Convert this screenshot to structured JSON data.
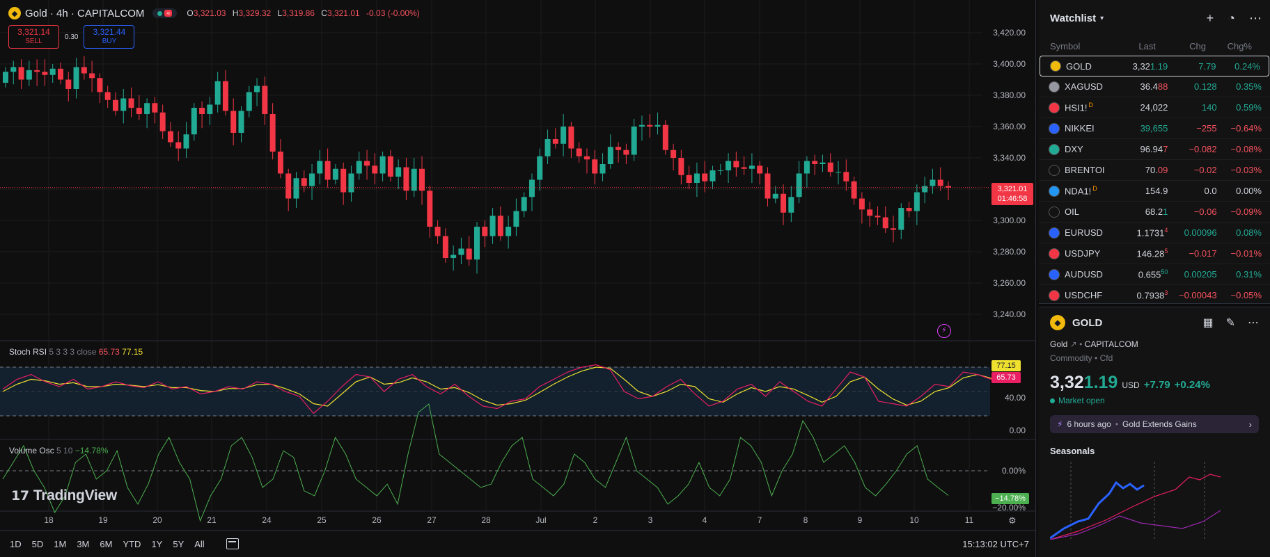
{
  "header": {
    "symbol_title": "Gold · 4h · CAPITALCOM",
    "open_label": "O",
    "open": "3,321.03",
    "high_label": "H",
    "high": "3,329.32",
    "low_label": "L",
    "low": "3,319.86",
    "close_label": "C",
    "close": "3,321.01",
    "change": "-0.03 (-0.00%)"
  },
  "trade": {
    "sell_price": "3,321.14",
    "sell_label": "SELL",
    "spread": "0.30",
    "buy_price": "3,321.44",
    "buy_label": "BUY"
  },
  "price_axis": [
    "3,420.00",
    "3,400.00",
    "3,380.00",
    "3,360.00",
    "3,340.00",
    "3,320.00",
    "3,300.00",
    "3,280.00",
    "3,260.00",
    "3,240.00"
  ],
  "last_price_tag": {
    "price": "3,321.01",
    "countdown": "01:46:58"
  },
  "stoch_rsi": {
    "name": "Stoch RSI",
    "params": "5 3 3 3 close",
    "k": "65.73",
    "d": "77.15",
    "axis": [
      "40.00",
      "0.00"
    ]
  },
  "volume_osc": {
    "name": "Volume Osc",
    "params": "5 10",
    "value": "−14.78%",
    "axis": [
      "0.00%",
      "−20.00%"
    ],
    "tag": "−14.78%"
  },
  "x_axis": [
    "18",
    "19",
    "20",
    "21",
    "24",
    "25",
    "26",
    "27",
    "28",
    "Jul",
    "2",
    "3",
    "4",
    "7",
    "8",
    "9",
    "10",
    "11"
  ],
  "logo_text": "TradingView",
  "ranges": [
    "1D",
    "5D",
    "1M",
    "3M",
    "6M",
    "YTD",
    "1Y",
    "5Y",
    "All"
  ],
  "clock": "15:13:02 UTC+7",
  "colors": {
    "up": "#22ab94",
    "down": "#f23645",
    "accent": "#2962ff"
  },
  "watchlist": {
    "title": "Watchlist",
    "columns": [
      "Symbol",
      "Last",
      "Chg",
      "Chg%"
    ],
    "rows": [
      {
        "symbol": "GOLD",
        "last_a": "3,32",
        "last_b": "1.19",
        "chg": "7.79",
        "pct": "0.24%",
        "dir": "up",
        "icon_bg": "#f0b90b",
        "icon": "gold-icon",
        "mark": "",
        "last_b_dir": "up"
      },
      {
        "symbol": "XAGUSD",
        "last_a": "36.4",
        "last_b": "88",
        "chg": "0.128",
        "pct": "0.35%",
        "dir": "up",
        "icon_bg": "#9598a1",
        "icon": "silver-icon",
        "mark": "",
        "last_b_dir": "dn"
      },
      {
        "symbol": "HSI1!",
        "last_a": "24,02",
        "last_b": "2",
        "chg": "140",
        "pct": "0.59%",
        "dir": "up",
        "icon_bg": "#f23645",
        "icon": "hsi-icon",
        "mark": "D",
        "last_b_dir": "none"
      },
      {
        "symbol": "NIKKEI",
        "last_a": "39,655",
        "last_b": "",
        "chg": "−255",
        "pct": "−0.64%",
        "dir": "dn",
        "icon_bg": "#2962ff",
        "icon": "nikkei-icon",
        "mark": "",
        "last_b_dir": "none",
        "last_up": true
      },
      {
        "symbol": "DXY",
        "last_a": "96.94",
        "last_b": "7",
        "chg": "−0.082",
        "pct": "−0.08%",
        "dir": "dn",
        "icon_bg": "#22ab94",
        "icon": "dollar-icon",
        "mark": "",
        "last_b_dir": "dn"
      },
      {
        "symbol": "BRENTOI",
        "last_a": "70.",
        "last_b": "09",
        "chg": "−0.02",
        "pct": "−0.03%",
        "dir": "dn",
        "icon_bg": "#131313",
        "icon": "oil-drop-icon",
        "mark": "",
        "last_b_dir": "dn"
      },
      {
        "symbol": "NDA1!",
        "last_a": "154.9",
        "last_b": "",
        "chg": "0.0",
        "pct": "0.00%",
        "dir": "flat",
        "icon_bg": "#2196f3",
        "icon": "nda-icon",
        "mark": "D",
        "last_b_dir": "none"
      },
      {
        "symbol": "OIL",
        "last_a": "68.2",
        "last_b": "1",
        "chg": "−0.06",
        "pct": "−0.09%",
        "dir": "dn",
        "icon_bg": "#131313",
        "icon": "oil-drop-icon",
        "mark": "",
        "last_b_dir": "up"
      },
      {
        "symbol": "EURUSD",
        "last_a": "1.1731",
        "last_b": "4",
        "chg": "0.00096",
        "pct": "0.08%",
        "dir": "up",
        "icon_bg": "#2962ff",
        "icon": "eu-flag-icon",
        "mark": "",
        "last_b_dir": "dn",
        "small": true
      },
      {
        "symbol": "USDJPY",
        "last_a": "146.28",
        "last_b": "5",
        "chg": "−0.017",
        "pct": "−0.01%",
        "dir": "dn",
        "icon_bg": "#f23645",
        "icon": "us-flag-icon",
        "mark": "",
        "last_b_dir": "dn",
        "small": true
      },
      {
        "symbol": "AUDUSD",
        "last_a": "0.655",
        "last_b": "50",
        "chg": "0.00205",
        "pct": "0.31%",
        "dir": "up",
        "icon_bg": "#2962ff",
        "icon": "au-flag-icon",
        "mark": "",
        "last_b_dir": "up",
        "small": true
      },
      {
        "symbol": "USDCHF",
        "last_a": "0.7938",
        "last_b": "3",
        "chg": "−0.00043",
        "pct": "−0.05%",
        "dir": "dn",
        "icon_bg": "#f23645",
        "icon": "us-flag-icon",
        "mark": "",
        "last_b_dir": "dn",
        "small": true
      }
    ]
  },
  "detail": {
    "symbol": "GOLD",
    "name": "Gold",
    "exchange": "CAPITALCOM",
    "type": "Commodity",
    "subtype": "Cfd",
    "price_a": "3,32",
    "price_b": "1.19",
    "currency": "USD",
    "change": "+7.79",
    "change_pct": "+0.24%",
    "market_status": "Market open",
    "news_ago": "6 hours ago",
    "news_title": "Gold Extends Gains",
    "seasonals": "Seasonals"
  }
}
